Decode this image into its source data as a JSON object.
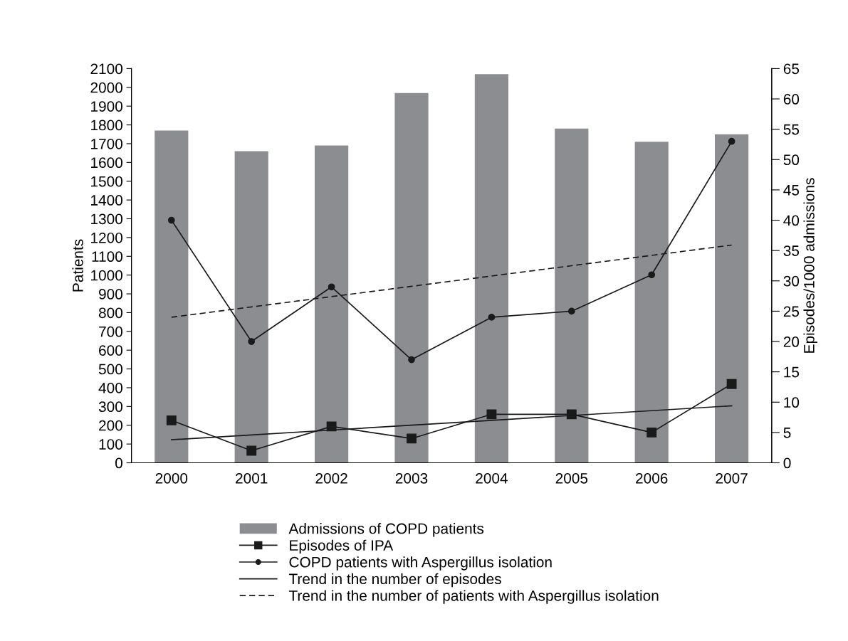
{
  "chart_data": {
    "type": "bar",
    "ylabel": "Patients",
    "y2label": "Episodes/1000 admissions",
    "categories": [
      "2000",
      "2001",
      "2002",
      "2003",
      "2004",
      "2005",
      "2006",
      "2007"
    ],
    "series": [
      {
        "name": "Admissions of COPD patients",
        "color": "#8c8d91",
        "values": [
          1770,
          1660,
          1690,
          1970,
          2070,
          1780,
          1710,
          1750
        ]
      },
      {
        "name": "Episodes of IPA",
        "type": "line",
        "axis": "y2",
        "color": "#1a1a1a",
        "marker": "square",
        "line_style": "solid",
        "values": [
          7,
          2,
          6,
          4,
          8,
          8,
          5,
          13
        ]
      },
      {
        "name": "COPD patients with Aspergillus isolation",
        "type": "line",
        "axis": "y2",
        "color": "#1a1a1a",
        "marker": "circle",
        "line_style": "solid",
        "values": [
          40,
          20,
          29,
          17,
          24,
          25,
          31,
          53
        ]
      },
      {
        "name": "Trend in the number of episodes",
        "type": "line",
        "axis": "y2",
        "color": "#1a1a1a",
        "marker": "none",
        "line_style": "solid",
        "values": [
          3.8,
          4.6,
          5.4,
          6.2,
          7.0,
          7.8,
          8.6,
          9.4
        ]
      },
      {
        "name": "Trend in the number of patients with Aspergillus isolation",
        "type": "line",
        "axis": "y2",
        "color": "#1a1a1a",
        "marker": "none",
        "line_style": "dashed",
        "values": [
          24,
          25.7,
          27.4,
          29.1,
          30.8,
          32.5,
          34.2,
          35.9
        ]
      }
    ],
    "ylim": [
      0,
      2100
    ],
    "yticks": [
      0,
      100,
      200,
      300,
      400,
      500,
      600,
      700,
      800,
      900,
      1000,
      1100,
      1200,
      1300,
      1400,
      1500,
      1600,
      1700,
      1800,
      1900,
      2000,
      2100
    ],
    "y2lim": [
      0,
      65
    ],
    "y2ticks": [
      0,
      5,
      10,
      15,
      20,
      25,
      30,
      35,
      40,
      45,
      50,
      55,
      60,
      65
    ],
    "grid": false,
    "legend": "bottom"
  }
}
